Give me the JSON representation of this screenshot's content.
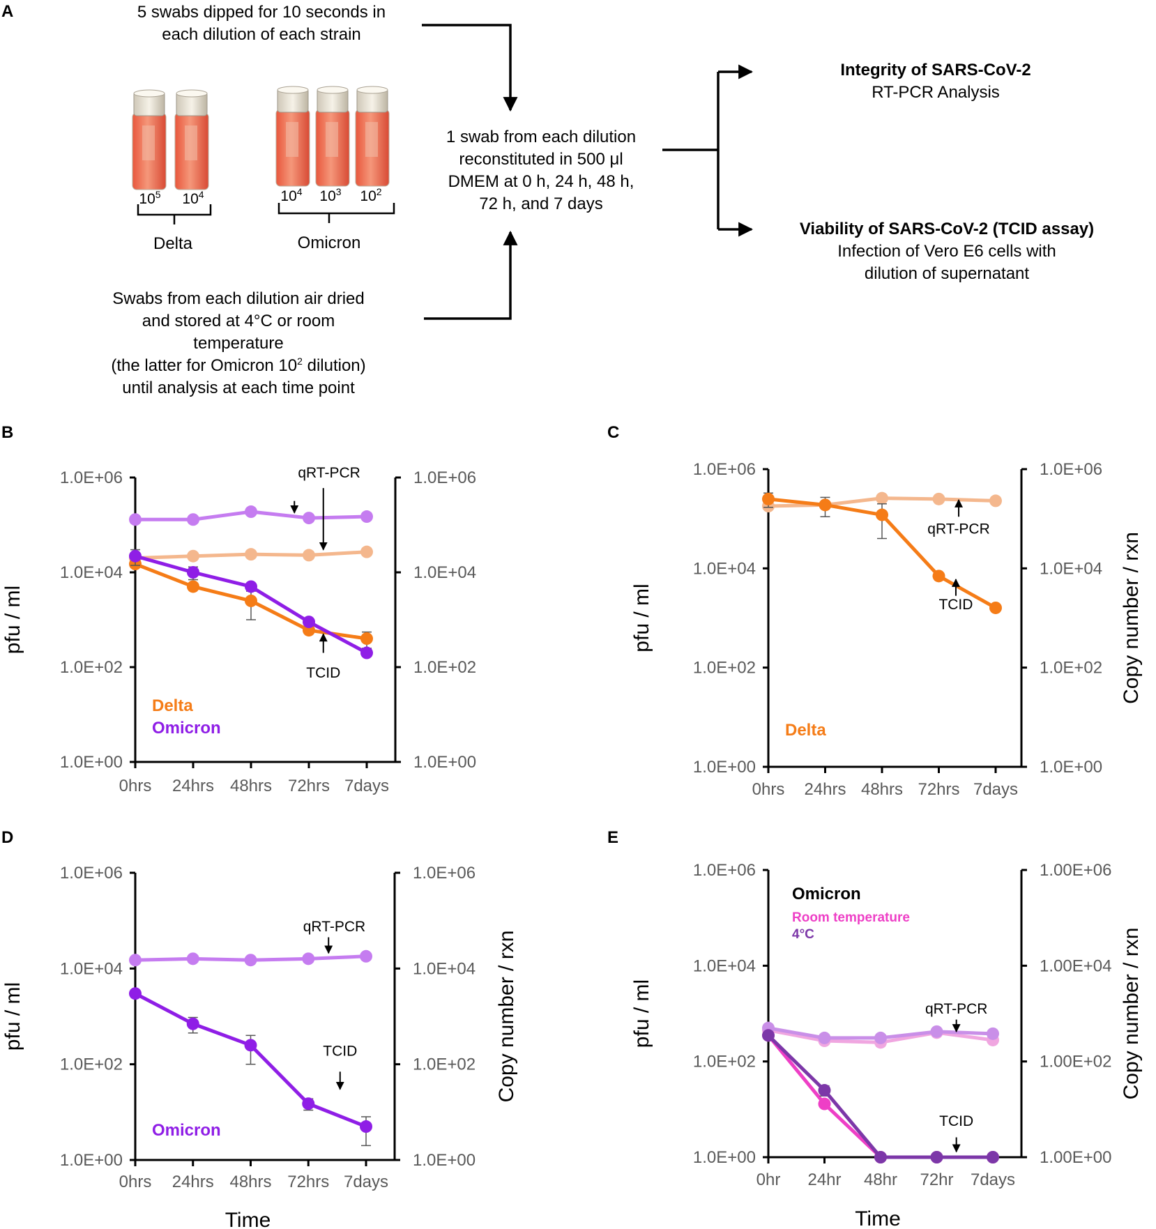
{
  "panel_a": {
    "letter": "A",
    "swabs_text": [
      "5 swabs dipped for 10 seconds in",
      "each dilution of each strain"
    ],
    "delta_label": "Delta",
    "omicron_label": "Omicron",
    "delta_dilutions": [
      {
        "base": "10",
        "exp": "5"
      },
      {
        "base": "10",
        "exp": "4"
      }
    ],
    "omicron_dilutions": [
      {
        "base": "10",
        "exp": "4"
      },
      {
        "base": "10",
        "exp": "3"
      },
      {
        "base": "10",
        "exp": "2"
      }
    ],
    "storage_text": [
      "Swabs from each dilution air dried",
      "and stored at 4°C or room",
      "temperature"
    ],
    "storage_note_pre": "(the latter for Omicron 10",
    "storage_note_sup": "2",
    "storage_note_post": " dilution)",
    "storage_text_last": "until analysis at each time point",
    "reconstitution_text": [
      "1 swab from each dilution",
      "reconstituted in 500 μl",
      "DMEM at 0 h, 24 h, 48 h,",
      "72 h, and 7 days"
    ],
    "integrity_title": "Integrity of SARS-CoV-2",
    "integrity_sub": "RT-PCR Analysis",
    "viability_title": "Viability of SARS-CoV-2 (TCID assay)",
    "viability_sub": [
      "Infection of Vero E6 cells with",
      "dilution of supernatant"
    ]
  },
  "colors": {
    "delta": "#F57C17",
    "delta_light": "#F4B78D",
    "omicron": "#8F1EE6",
    "omicron_light": "#C57CF0",
    "room_temp": "#EE3FC6",
    "room_temp_light": "#F0A6E0",
    "cold": "#7C37A8",
    "cold_light": "#C98FE8"
  },
  "chart_data": [
    {
      "panel": "B",
      "type": "line",
      "y_scale": "log",
      "ylim": [
        1,
        1000000
      ],
      "categories": [
        "0hrs",
        "24hrs",
        "48hrs",
        "72hrs",
        "7days"
      ],
      "ylabel": "pfu / ml",
      "y2label": "",
      "xlabel": "",
      "yticks": [
        "1.0E+00",
        "1.0E+02",
        "1.0E+04",
        "1.0E+06"
      ],
      "y2ticks": [
        "1.0E+00",
        "1.0E+02",
        "1.0E+04",
        "1.0E+06"
      ],
      "legend": [
        {
          "text": "Delta",
          "color": "#F57C17",
          "size": "large"
        },
        {
          "text": "Omicron",
          "color": "#8F1EE6",
          "size": "large"
        }
      ],
      "annotations": [
        {
          "text": "qRT-PCR",
          "x": 3.35,
          "y": 1000000,
          "dir": "down",
          "arrows": [
            {
              "x": 2.75,
              "to": 180000,
              "from": 320000
            },
            {
              "x": 3.25,
              "to": 30000,
              "from": 600000
            }
          ]
        },
        {
          "text": "TCID",
          "x": 3.25,
          "y": 60,
          "dir": "up",
          "arrows": [
            {
              "x": 3.25,
              "to": 500,
              "from": 200
            }
          ]
        }
      ],
      "series": [
        {
          "name": "Omicron copy number",
          "color": "#C57CF0",
          "values": [
            130000,
            130000,
            190000,
            140000,
            150000
          ]
        },
        {
          "name": "Delta copy number",
          "color": "#F4B78D",
          "values": [
            20000,
            22000,
            24000,
            23000,
            27000
          ]
        },
        {
          "name": "Delta pfu",
          "color": "#F57C17",
          "values": [
            15000,
            5000,
            2500,
            600,
            400
          ],
          "errors": [
            0,
            0,
            1500,
            0,
            150
          ]
        },
        {
          "name": "Omicron pfu",
          "color": "#8F1EE6",
          "values": [
            22000,
            10000,
            5000,
            900,
            200
          ],
          "errors": [
            8000,
            3000,
            0,
            0,
            0
          ]
        }
      ]
    },
    {
      "panel": "C",
      "type": "line",
      "y_scale": "log",
      "ylim": [
        1,
        1000000
      ],
      "categories": [
        "0hrs",
        "24hrs",
        "48hrs",
        "72hrs",
        "7days"
      ],
      "ylabel": "pfu / ml",
      "y2label": "Copy number / rxn",
      "xlabel": "",
      "yticks": [
        "1.0E+00",
        "1.0E+02",
        "1.0E+04",
        "1.0E+06"
      ],
      "y2ticks": [
        "1.0E+00",
        "1.0E+02",
        "1.0E+04",
        "1.0E+06"
      ],
      "legend": [
        {
          "text": "Delta",
          "color": "#F57C17",
          "size": "large"
        }
      ],
      "annotations": [
        {
          "text": "qRT-PCR",
          "x": 3.35,
          "y": 50000,
          "dir": "up",
          "arrows": [
            {
              "x": 3.35,
              "to": 240000,
              "from": 110000
            }
          ]
        },
        {
          "text": "TCID",
          "x": 3.3,
          "y": 1500,
          "dir": "up",
          "arrows": [
            {
              "x": 3.3,
              "to": 6000,
              "from": 2800
            }
          ]
        }
      ],
      "series": [
        {
          "name": "Delta copy number",
          "color": "#F4B78D",
          "values": [
            180000,
            190000,
            260000,
            250000,
            230000
          ]
        },
        {
          "name": "Delta pfu",
          "color": "#F57C17",
          "values": [
            250000,
            190000,
            120000,
            7000,
            1600
          ],
          "errors": [
            80000,
            80000,
            80000,
            0,
            0
          ]
        }
      ]
    },
    {
      "panel": "D",
      "type": "line",
      "y_scale": "log",
      "ylim": [
        1,
        1000000
      ],
      "categories": [
        "0hrs",
        "24hrs",
        "48hrs",
        "72hrs",
        "7days"
      ],
      "ylabel": "pfu / ml",
      "y2label": "Copy number / rxn",
      "xlabel": "Time",
      "yticks": [
        "1.0E+00",
        "1.0E+02",
        "1.0E+04",
        "1.0E+06"
      ],
      "y2ticks": [
        "1.0E+00",
        "1.0E+02",
        "1.0E+04",
        "1.0E+06"
      ],
      "legend": [
        {
          "text": "Omicron",
          "color": "#8F1EE6",
          "size": "large"
        }
      ],
      "annotations": [
        {
          "text": "qRT-PCR",
          "x": 3.45,
          "y": 60000,
          "dir": "down",
          "arrows": [
            {
              "x": 3.35,
              "to": 21000,
              "from": 45000
            }
          ]
        },
        {
          "text": "TCID",
          "x": 3.55,
          "y": 150,
          "dir": "down",
          "arrows": [
            {
              "x": 3.55,
              "to": 30,
              "from": 70
            }
          ]
        }
      ],
      "series": [
        {
          "name": "Omicron copy number",
          "color": "#C57CF0",
          "values": [
            15000,
            16000,
            15000,
            16000,
            18000
          ]
        },
        {
          "name": "Omicron pfu",
          "color": "#8F1EE6",
          "values": [
            3000,
            700,
            250,
            15,
            5
          ],
          "errors": [
            0,
            250,
            150,
            4,
            3
          ]
        }
      ]
    },
    {
      "panel": "E",
      "type": "line",
      "y_scale": "log",
      "ylim": [
        1,
        1000000
      ],
      "categories": [
        "0hr",
        "24hr",
        "48hr",
        "72hr",
        "7days"
      ],
      "ylabel": "pfu / ml",
      "y2label": "Copy number / rxn",
      "xlabel": "Time",
      "yticks": [
        "1.0E+00",
        "1.0E+02",
        "1.0E+04",
        "1.0E+06"
      ],
      "y2ticks": [
        "1.00E+00",
        "1.00E+02",
        "1.00E+04",
        "1.00E+06"
      ],
      "legend": [
        {
          "text": "Omicron",
          "color": "#000000",
          "size": "large"
        },
        {
          "text": "Room temperature",
          "color": "#EE3FC6",
          "size": "small"
        },
        {
          "text": "4°C",
          "color": "#7C37A8",
          "size": "small"
        }
      ],
      "annotations": [
        {
          "text": "qRT-PCR",
          "x": 3.35,
          "y": 1000,
          "dir": "down",
          "arrows": [
            {
              "x": 3.35,
              "to": 420,
              "from": 750
            }
          ]
        },
        {
          "text": "TCID",
          "x": 3.35,
          "y": 4.5,
          "dir": "down",
          "arrows": [
            {
              "x": 3.35,
              "to": 1.3,
              "from": 2.6
            }
          ]
        }
      ],
      "series": [
        {
          "name": "Room temperature copy number",
          "color": "#F0A6E0",
          "values": [
            450,
            270,
            250,
            400,
            280
          ],
          "errors": [
            0,
            40,
            40,
            0,
            0
          ]
        },
        {
          "name": "4°C copy number",
          "color": "#C98FE8",
          "values": [
            500,
            310,
            310,
            420,
            380
          ]
        },
        {
          "name": "Room temperature pfu",
          "color": "#EE3FC6",
          "values": [
            350,
            13,
            1,
            1,
            1
          ]
        },
        {
          "name": "4°C pfu",
          "color": "#7C37A8",
          "values": [
            350,
            25,
            1,
            1,
            1
          ],
          "errors": [
            0,
            6,
            0,
            0,
            0
          ]
        }
      ]
    }
  ]
}
